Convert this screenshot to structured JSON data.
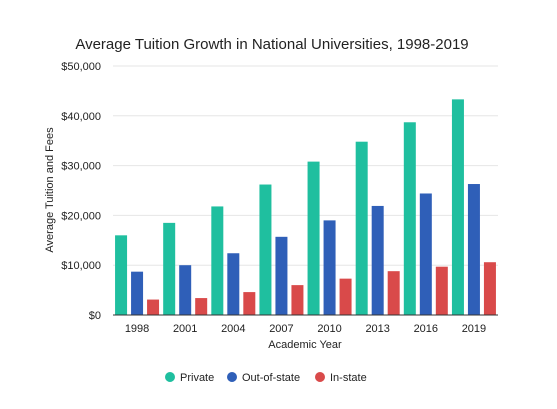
{
  "chart_data": {
    "type": "bar",
    "title": "Average Tuition Growth in National Universities, 1998-2019",
    "xlabel": "Academic Year",
    "ylabel": "Average Tuition and Fees",
    "categories": [
      "1998",
      "2001",
      "2004",
      "2007",
      "2010",
      "2013",
      "2016",
      "2019"
    ],
    "ylim": [
      0,
      50000
    ],
    "yticks": [
      0,
      10000,
      20000,
      30000,
      40000,
      50000
    ],
    "ytick_labels": [
      "$0",
      "$10,000",
      "$20,000",
      "$30,000",
      "$40,000",
      "$50,000"
    ],
    "grid": true,
    "legend_position": "bottom",
    "series": [
      {
        "name": "Private",
        "color": "#1fbf9f",
        "values": [
          16000,
          18500,
          21800,
          26200,
          30800,
          34800,
          38700,
          43300
        ]
      },
      {
        "name": "Out-of-state",
        "color": "#2f5fb8",
        "values": [
          8700,
          10000,
          12400,
          15700,
          19000,
          21900,
          24400,
          26300
        ]
      },
      {
        "name": "In-state",
        "color": "#d94a4a",
        "values": [
          3100,
          3400,
          4600,
          6000,
          7300,
          8800,
          9700,
          10600
        ]
      }
    ]
  }
}
